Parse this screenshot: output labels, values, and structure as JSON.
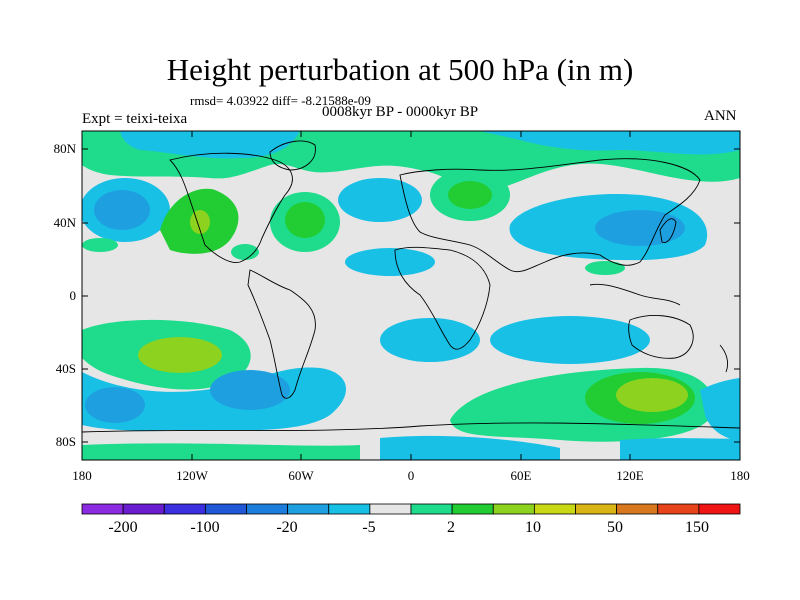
{
  "figure": {
    "title": "Height perturbation at 500 hPa (in m)",
    "stats": "rmsd= 4.03922 diff= -8.21588e-09",
    "period": "0008kyr BP - 0000kyr BP",
    "experiment": "Expt = teixi-teixa",
    "season": "ANN"
  },
  "axes": {
    "lat_labels": [
      "80N",
      "40N",
      "0",
      "40S",
      "80S"
    ],
    "lon_labels": [
      "180",
      "120W",
      "60W",
      "0",
      "60E",
      "120E",
      "180"
    ]
  },
  "colorbar": {
    "labels": [
      "-200",
      "-100",
      "-20",
      "-5",
      "2",
      "10",
      "50",
      "150"
    ],
    "colors": [
      "#8a2be2",
      "#6a1ccf",
      "#3b2fe0",
      "#1f57d6",
      "#1c7ddc",
      "#1ea0e0",
      "#18c0e6",
      "#e6e6e6",
      "#1edc8c",
      "#22cc33",
      "#8cd21e",
      "#c8d814",
      "#d8b414",
      "#d8781e",
      "#e8441c",
      "#f01414"
    ]
  },
  "map": {
    "colors": {
      "background": "#e6e6e6",
      "blue_light": "#18c0e6",
      "blue_mid": "#1ea0e0",
      "blue_dark": "#1c7ddc",
      "green_light": "#1edc8c",
      "green": "#22cc33",
      "yellow_green": "#8cd21e",
      "coast": "#000000"
    }
  }
}
